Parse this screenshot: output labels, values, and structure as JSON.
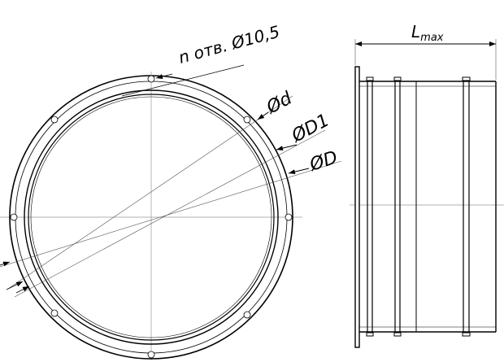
{
  "labels": {
    "holes": "n отв. Ø10,5",
    "d": "Ød",
    "d1": "ØD1",
    "D": "ØD",
    "lmax_main": "L",
    "lmax_sub": "max"
  },
  "colors": {
    "line": "#000000",
    "thin": "#555555",
    "center": "#999999",
    "background": "#ffffff"
  }
}
